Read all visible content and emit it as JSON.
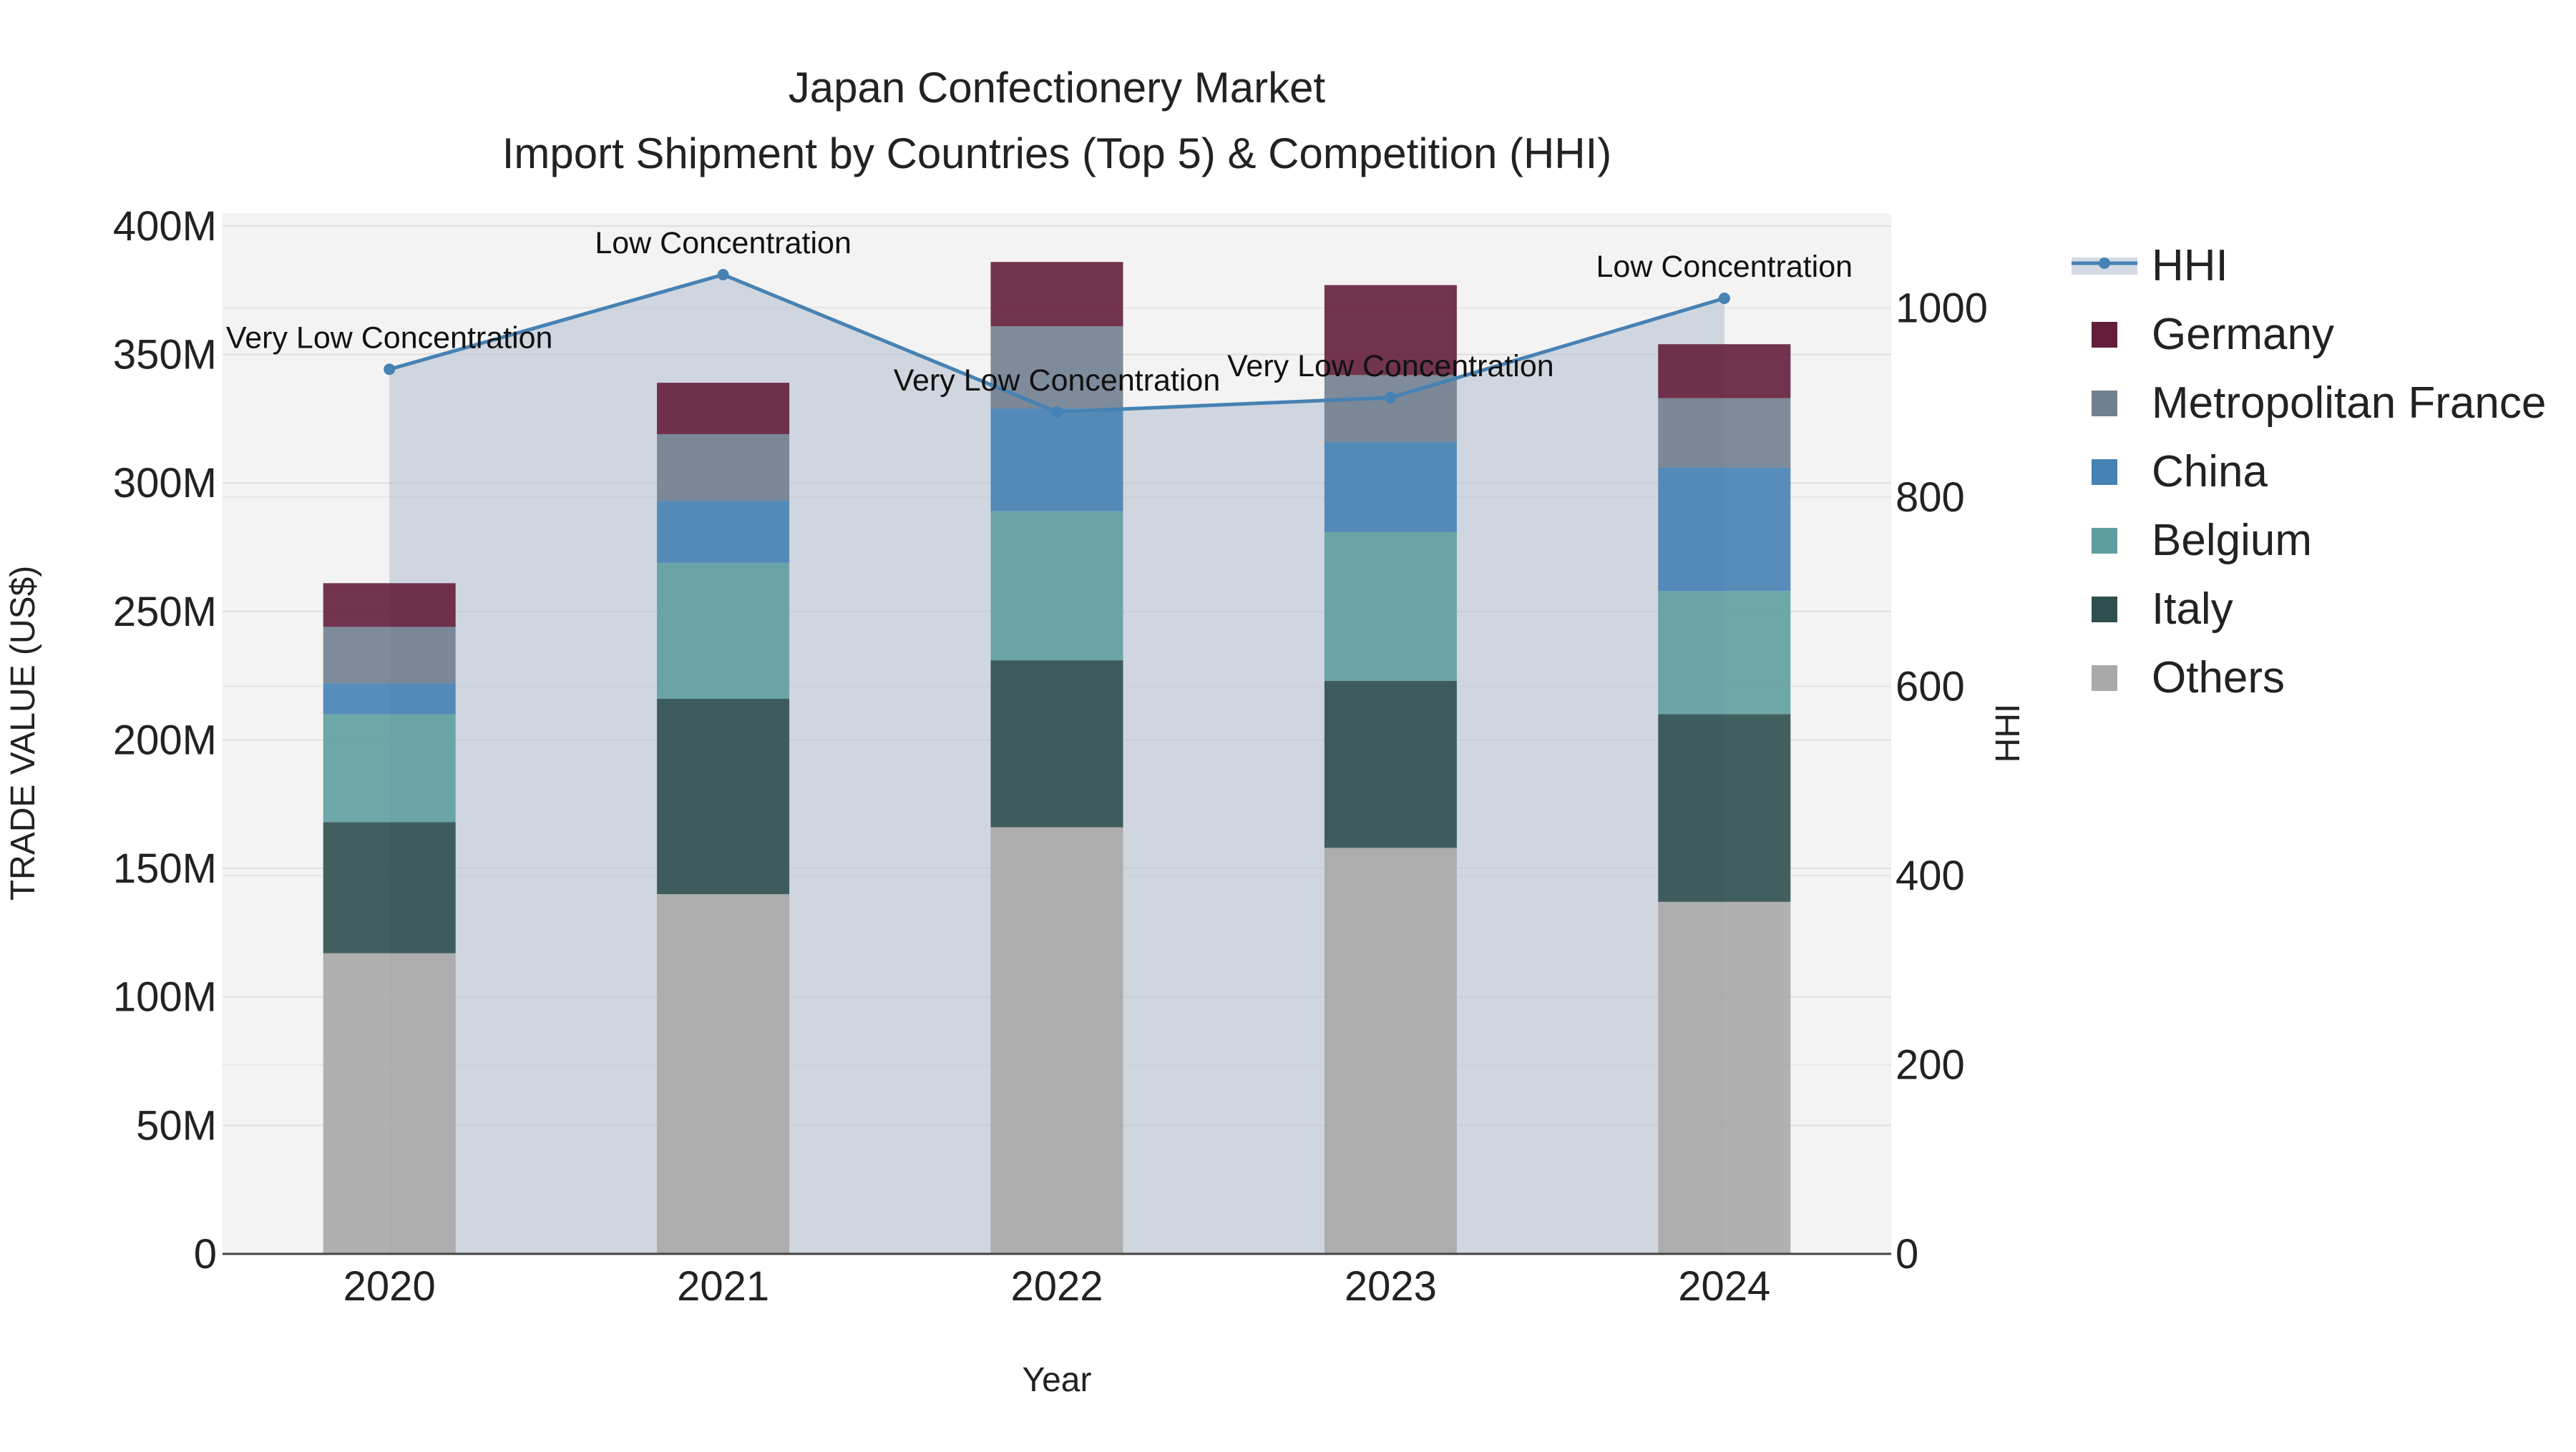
{
  "chart_data": {
    "type": "bar",
    "title": "Japan Confectionery Market",
    "subtitle": "Import Shipment by Countries (Top 5) & Competition (HHI)",
    "xlabel": "Year",
    "ylabel": "TRADE VALUE (US$)",
    "y2label": "HHI",
    "categories": [
      "2020",
      "2021",
      "2022",
      "2023",
      "2024"
    ],
    "ylim": [
      0,
      405000000
    ],
    "y2lim": [
      0,
      1100
    ],
    "yticks": [
      {
        "value": 0,
        "label": "0"
      },
      {
        "value": 50000000,
        "label": "50M"
      },
      {
        "value": 100000000,
        "label": "100M"
      },
      {
        "value": 150000000,
        "label": "150M"
      },
      {
        "value": 200000000,
        "label": "200M"
      },
      {
        "value": 250000000,
        "label": "250M"
      },
      {
        "value": 300000000,
        "label": "300M"
      },
      {
        "value": 350000000,
        "label": "350M"
      },
      {
        "value": 400000000,
        "label": "400M"
      }
    ],
    "y2ticks": [
      {
        "value": 0,
        "label": "0"
      },
      {
        "value": 200,
        "label": "200"
      },
      {
        "value": 400,
        "label": "400"
      },
      {
        "value": 600,
        "label": "600"
      },
      {
        "value": 800,
        "label": "800"
      },
      {
        "value": 1000,
        "label": "1000"
      }
    ],
    "grid": true,
    "legend_position": "right",
    "stacked": true,
    "series": [
      {
        "name": "Others",
        "color": "#a9a9a9",
        "values": [
          117000000,
          140000000,
          166000000,
          158000000,
          137000000
        ]
      },
      {
        "name": "Italy",
        "color": "#2f4f4f",
        "values": [
          51000000,
          76000000,
          65000000,
          65000000,
          73000000
        ]
      },
      {
        "name": "Belgium",
        "color": "#5f9ea0",
        "values": [
          42000000,
          53000000,
          58000000,
          58000000,
          48000000
        ]
      },
      {
        "name": "China",
        "color": "#4682b4",
        "values": [
          12000000,
          24000000,
          40000000,
          35000000,
          48000000
        ]
      },
      {
        "name": "Metropolitan France",
        "color": "#708090",
        "values": [
          22000000,
          26000000,
          32000000,
          26000000,
          27000000
        ]
      },
      {
        "name": "Germany",
        "color": "#641e3c",
        "values": [
          17000000,
          20000000,
          25000000,
          35000000,
          21000000
        ]
      }
    ],
    "hhi": {
      "name": "HHI",
      "color": "#4682b4",
      "fill": "rgba(185, 195, 210, 0.62)",
      "values": [
        935,
        1035,
        890,
        905,
        1010
      ],
      "annotations": [
        "Very Low Concentration",
        "Low Concentration",
        "Very Low Concentration",
        "Very Low Concentration",
        "Low Concentration"
      ]
    }
  }
}
